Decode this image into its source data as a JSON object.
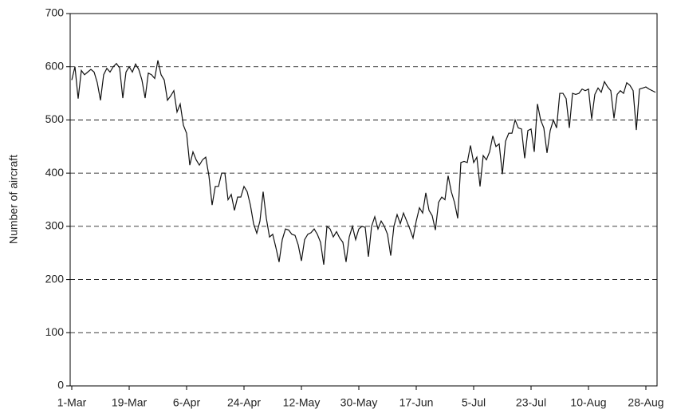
{
  "chart_data": {
    "type": "line",
    "y_label": "Number of aircraft",
    "ylim": [
      0,
      700
    ],
    "yticks": [
      0,
      100,
      200,
      300,
      400,
      500,
      600,
      700
    ],
    "grid": true,
    "color": "#111111",
    "categories": [
      "1-Mar",
      null,
      null,
      null,
      null,
      null,
      null,
      null,
      null,
      null,
      null,
      null,
      null,
      null,
      null,
      null,
      null,
      null,
      "19-Mar",
      null,
      null,
      null,
      null,
      null,
      null,
      null,
      null,
      null,
      null,
      null,
      null,
      null,
      null,
      null,
      null,
      null,
      "6-Apr",
      null,
      null,
      null,
      null,
      null,
      null,
      null,
      null,
      null,
      null,
      null,
      null,
      null,
      null,
      null,
      null,
      null,
      "24-Apr",
      null,
      null,
      null,
      null,
      null,
      null,
      null,
      null,
      null,
      null,
      null,
      null,
      null,
      null,
      null,
      null,
      null,
      "12-May",
      null,
      null,
      null,
      null,
      null,
      null,
      null,
      null,
      null,
      null,
      null,
      null,
      null,
      null,
      null,
      null,
      null,
      "30-May",
      null,
      null,
      null,
      null,
      null,
      null,
      null,
      null,
      null,
      null,
      null,
      null,
      null,
      null,
      null,
      null,
      null,
      "17-Jun",
      null,
      null,
      null,
      null,
      null,
      null,
      null,
      null,
      null,
      null,
      null,
      null,
      null,
      null,
      null,
      null,
      null,
      "5-Jul",
      null,
      null,
      null,
      null,
      null,
      null,
      null,
      null,
      null,
      null,
      null,
      null,
      null,
      null,
      null,
      null,
      null,
      "23-Jul",
      null,
      null,
      null,
      null,
      null,
      null,
      null,
      null,
      null,
      null,
      null,
      null,
      null,
      null,
      null,
      null,
      null,
      "10-Aug",
      null,
      null,
      null,
      null,
      null,
      null,
      null,
      null,
      null,
      null,
      null,
      null,
      null,
      null,
      null,
      null,
      null,
      "28-Aug",
      null,
      null,
      null
    ],
    "values": [
      575,
      600,
      540,
      593,
      585,
      590,
      595,
      590,
      570,
      537,
      585,
      597,
      590,
      600,
      606,
      598,
      541,
      590,
      600,
      590,
      605,
      595,
      575,
      541,
      588,
      585,
      578,
      612,
      585,
      575,
      537,
      545,
      555,
      515,
      530,
      490,
      475,
      415,
      440,
      425,
      415,
      425,
      430,
      395,
      340,
      375,
      375,
      400,
      400,
      350,
      360,
      330,
      355,
      355,
      375,
      365,
      340,
      305,
      287,
      310,
      365,
      315,
      280,
      285,
      260,
      233,
      275,
      295,
      293,
      285,
      283,
      265,
      235,
      275,
      285,
      288,
      295,
      285,
      270,
      228,
      300,
      295,
      280,
      290,
      278,
      270,
      233,
      280,
      300,
      275,
      295,
      300,
      298,
      243,
      300,
      318,
      295,
      310,
      300,
      285,
      245,
      300,
      322,
      305,
      325,
      310,
      295,
      278,
      310,
      335,
      325,
      363,
      330,
      320,
      293,
      345,
      355,
      350,
      395,
      365,
      345,
      315,
      420,
      422,
      420,
      452,
      420,
      430,
      375,
      433,
      425,
      440,
      470,
      450,
      455,
      398,
      460,
      475,
      475,
      500,
      485,
      483,
      428,
      480,
      483,
      440,
      530,
      500,
      485,
      438,
      480,
      500,
      485,
      550,
      550,
      540,
      485,
      550,
      548,
      550,
      558,
      555,
      558,
      502,
      548,
      560,
      552,
      572,
      562,
      555,
      503,
      548,
      555,
      550,
      570,
      565,
      555,
      481,
      558,
      560,
      562,
      558,
      555,
      552
    ]
  }
}
